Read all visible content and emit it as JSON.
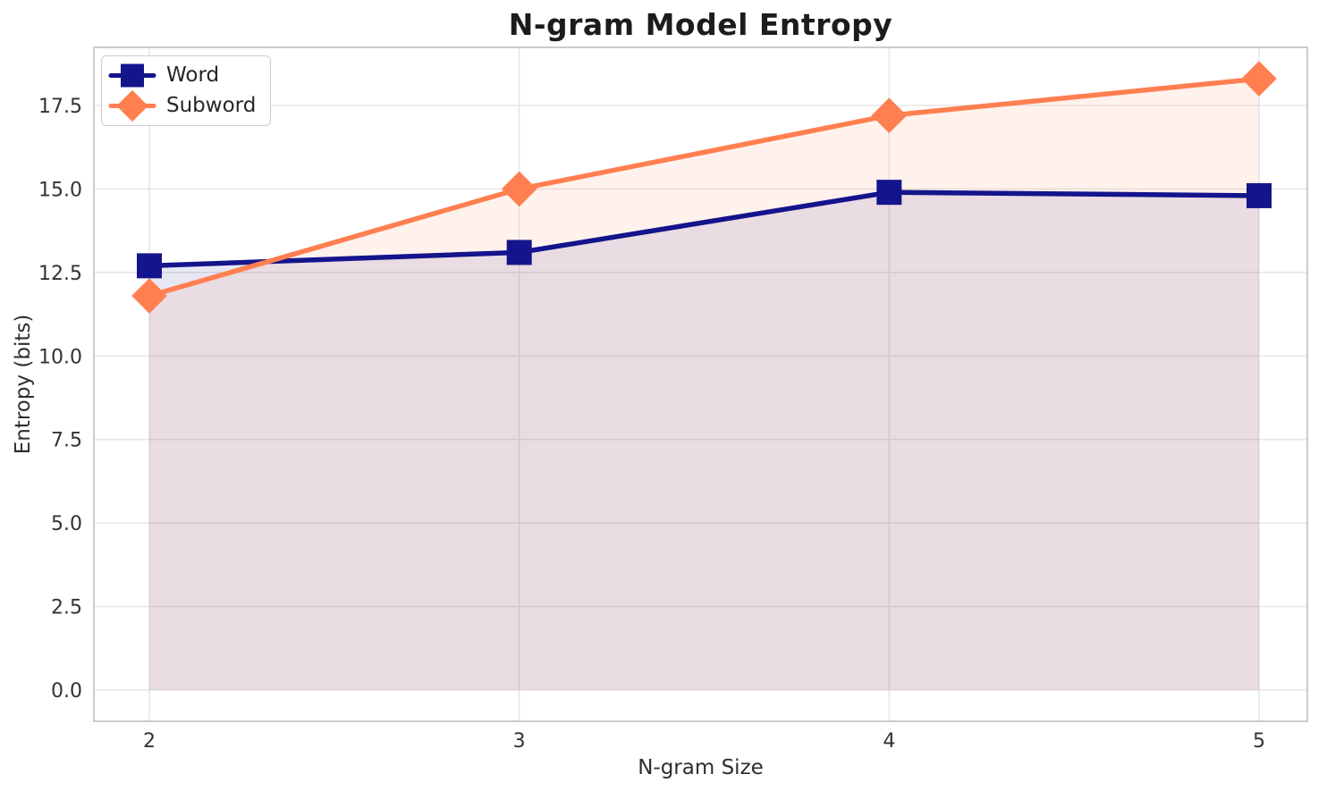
{
  "chart_data": {
    "type": "line",
    "title": "N-gram Model Entropy",
    "xlabel": "N-gram Size",
    "ylabel": "Entropy (bits)",
    "x": [
      2,
      3,
      4,
      5
    ],
    "series": [
      {
        "name": "Word",
        "values": [
          12.7,
          13.1,
          14.9,
          14.8
        ],
        "color": "#14148C",
        "marker": "square",
        "fill_to_zero": true,
        "fill_opacity": 0.1
      },
      {
        "name": "Subword",
        "values": [
          11.8,
          15.0,
          17.2,
          18.3
        ],
        "color": "#FF7F50",
        "marker": "diamond",
        "fill_to_zero": true,
        "fill_opacity": 0.1
      }
    ],
    "xticks": [
      "2",
      "3",
      "4",
      "5"
    ],
    "xtick_values": [
      2,
      3,
      4,
      5
    ],
    "yticks": [
      0.0,
      2.5,
      5.0,
      7.5,
      10.0,
      12.5,
      15.0,
      17.5
    ],
    "ytick_labels": [
      "0.0",
      "2.5",
      "5.0",
      "7.5",
      "10.0",
      "12.5",
      "15.0",
      "17.5"
    ],
    "ylim": [
      -0.94,
      19.23
    ],
    "xlim": [
      1.85,
      5.13
    ],
    "grid": true,
    "legend_position": "upper left",
    "colors": {
      "background": "#ffffff",
      "grid": "#e7e7e7",
      "spine": "#c6c6c6",
      "tick_text": "#333333",
      "title_text": "#1c1c1c",
      "axis_label_text": "#2e2e2e"
    }
  }
}
